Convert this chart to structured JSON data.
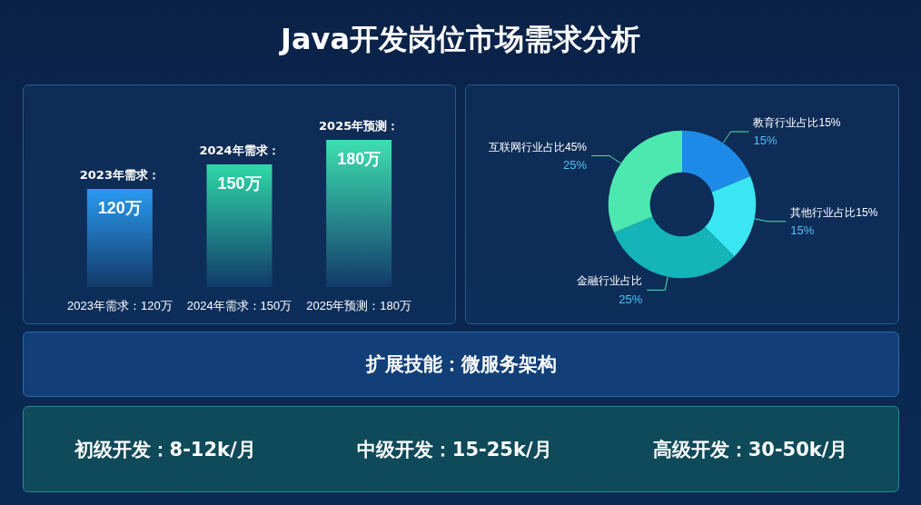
{
  "chart_data": [
    {
      "type": "bar",
      "title": "Java开发岗位市场需求分析",
      "categories": [
        "2023年需求：120万",
        "2024年需求：150万",
        "2025年预测：180万"
      ],
      "values": [
        120,
        150,
        180
      ],
      "colors": [
        "#2a9af0",
        "#2fd8a8",
        "#3ee0b0"
      ],
      "value_labels": [
        "120万",
        "150万",
        "180万"
      ],
      "annotations": [
        "2023年需求：",
        "2024年需求：",
        "2025年预测："
      ],
      "ylim": [
        0,
        180
      ],
      "tick_labels": "x",
      "legend": false
    },
    {
      "type": "donut",
      "categories": [
        "教育行业占比15%",
        "其他行业占比15%",
        "金融行业占比",
        "互联网行业占比45%"
      ],
      "values": [
        15,
        15,
        25,
        25
      ],
      "colors": [
        "#1e8ae8",
        "#3ae6f2",
        "#14b4b8",
        "#4de8b0"
      ],
      "value_labels": [
        "15%",
        "15%",
        "25%",
        "25%"
      ],
      "legend": false
    },
    {
      "type": "other",
      "annotations": [
        "扩展技能：微服务架构"
      ]
    },
    {
      "type": "other",
      "annotations": [
        "初级开发：8-12k/月",
        "中级开发：15-25k/月",
        "高级开发：30-50k/月"
      ]
    }
  ]
}
